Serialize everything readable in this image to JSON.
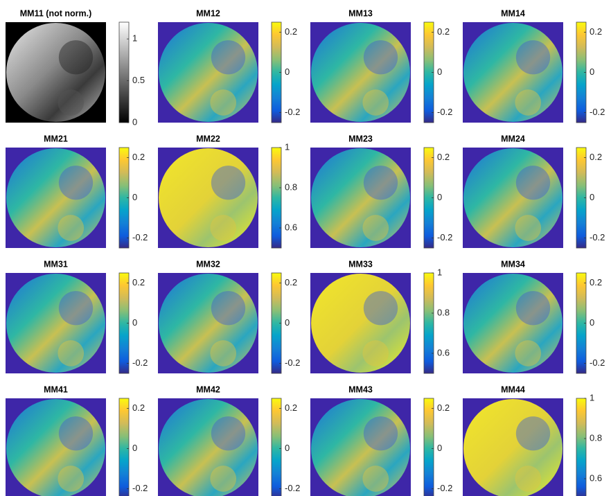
{
  "panels": [
    {
      "title": "MM11 (not norm.)",
      "colormap": "gray",
      "clim": [
        0,
        1.2
      ],
      "ticks": [
        0,
        0.5,
        1
      ]
    },
    {
      "title": "MM12",
      "colormap": "parula",
      "clim": [
        -0.25,
        0.25
      ],
      "ticks": [
        -0.2,
        0,
        0.2
      ]
    },
    {
      "title": "MM13",
      "colormap": "parula",
      "clim": [
        -0.25,
        0.25
      ],
      "ticks": [
        -0.2,
        0,
        0.2
      ]
    },
    {
      "title": "MM14",
      "colormap": "parula",
      "clim": [
        -0.25,
        0.25
      ],
      "ticks": [
        -0.2,
        0,
        0.2
      ]
    },
    {
      "title": "MM21",
      "colormap": "parula",
      "clim": [
        -0.25,
        0.25
      ],
      "ticks": [
        -0.2,
        0,
        0.2
      ]
    },
    {
      "title": "MM22",
      "colormap": "parula",
      "clim": [
        0.5,
        1
      ],
      "ticks": [
        0.6,
        0.8,
        1
      ]
    },
    {
      "title": "MM23",
      "colormap": "parula",
      "clim": [
        -0.25,
        0.25
      ],
      "ticks": [
        -0.2,
        0,
        0.2
      ]
    },
    {
      "title": "MM24",
      "colormap": "parula",
      "clim": [
        -0.25,
        0.25
      ],
      "ticks": [
        -0.2,
        0,
        0.2
      ]
    },
    {
      "title": "MM31",
      "colormap": "parula",
      "clim": [
        -0.25,
        0.25
      ],
      "ticks": [
        -0.2,
        0,
        0.2
      ]
    },
    {
      "title": "MM32",
      "colormap": "parula",
      "clim": [
        -0.25,
        0.25
      ],
      "ticks": [
        -0.2,
        0,
        0.2
      ]
    },
    {
      "title": "MM33",
      "colormap": "parula",
      "clim": [
        0.5,
        1
      ],
      "ticks": [
        0.6,
        0.8,
        1
      ]
    },
    {
      "title": "MM34",
      "colormap": "parula",
      "clim": [
        -0.25,
        0.25
      ],
      "ticks": [
        -0.2,
        0,
        0.2
      ]
    },
    {
      "title": "MM41",
      "colormap": "parula",
      "clim": [
        -0.25,
        0.25
      ],
      "ticks": [
        -0.2,
        0,
        0.2
      ]
    },
    {
      "title": "MM42",
      "colormap": "parula",
      "clim": [
        -0.25,
        0.25
      ],
      "ticks": [
        -0.2,
        0,
        0.2
      ]
    },
    {
      "title": "MM43",
      "colormap": "parula",
      "clim": [
        -0.25,
        0.25
      ],
      "ticks": [
        -0.2,
        0,
        0.2
      ]
    },
    {
      "title": "MM44",
      "colormap": "parula",
      "clim": [
        0.5,
        1
      ],
      "ticks": [
        0.6,
        0.8,
        1
      ]
    }
  ]
}
